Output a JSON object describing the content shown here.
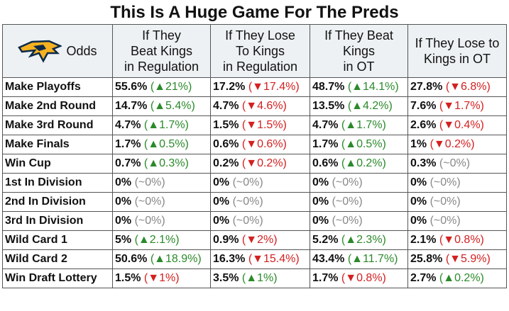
{
  "title": "This Is A Huge Game For The Preds",
  "table": {
    "corner": "Odds",
    "columns": [
      "If They\nBeat Kings\nin Regulation",
      "If They Lose\nTo Kings\nin Regulation",
      "If They Beat\nKings\nin OT",
      "If They Lose to\nKings in OT"
    ],
    "rows": [
      {
        "label": "Make Playoffs",
        "cells": [
          {
            "value": "55.6%",
            "change": "(▲21%)",
            "trend": "up"
          },
          {
            "value": "17.2%",
            "change": "(▼17.4%)",
            "trend": "down"
          },
          {
            "value": "48.7%",
            "change": "(▲14.1%)",
            "trend": "up"
          },
          {
            "value": "27.8%",
            "change": "(▼6.8%)",
            "trend": "down"
          }
        ]
      },
      {
        "label": "Make 2nd Round",
        "cells": [
          {
            "value": "14.7%",
            "change": "(▲5.4%)",
            "trend": "up"
          },
          {
            "value": "4.7%",
            "change": "(▼4.6%)",
            "trend": "down"
          },
          {
            "value": "13.5%",
            "change": "(▲4.2%)",
            "trend": "up"
          },
          {
            "value": "7.6%",
            "change": "(▼1.7%)",
            "trend": "down"
          }
        ]
      },
      {
        "label": "Make 3rd Round",
        "cells": [
          {
            "value": "4.7%",
            "change": "(▲1.7%)",
            "trend": "up"
          },
          {
            "value": "1.5%",
            "change": "(▼1.5%)",
            "trend": "down"
          },
          {
            "value": "4.7%",
            "change": "(▲1.7%)",
            "trend": "up"
          },
          {
            "value": "2.6%",
            "change": "(▼0.4%)",
            "trend": "down"
          }
        ]
      },
      {
        "label": "Make Finals",
        "cells": [
          {
            "value": "1.7%",
            "change": "(▲0.5%)",
            "trend": "up"
          },
          {
            "value": "0.6%",
            "change": "(▼0.6%)",
            "trend": "down"
          },
          {
            "value": "1.7%",
            "change": "(▲0.5%)",
            "trend": "up"
          },
          {
            "value": "1%",
            "change": "(▼0.2%)",
            "trend": "down"
          }
        ]
      },
      {
        "label": "Win Cup",
        "cells": [
          {
            "value": "0.7%",
            "change": "(▲0.3%)",
            "trend": "up"
          },
          {
            "value": "0.2%",
            "change": "(▼0.2%)",
            "trend": "down"
          },
          {
            "value": "0.6%",
            "change": "(▲0.2%)",
            "trend": "up"
          },
          {
            "value": "0.3%",
            "change": "(~0%)",
            "trend": "flat"
          }
        ]
      },
      {
        "label": "1st In Division",
        "cells": [
          {
            "value": "0%",
            "change": "(~0%)",
            "trend": "flat"
          },
          {
            "value": "0%",
            "change": "(~0%)",
            "trend": "flat"
          },
          {
            "value": "0%",
            "change": "(~0%)",
            "trend": "flat"
          },
          {
            "value": "0%",
            "change": "(~0%)",
            "trend": "flat"
          }
        ]
      },
      {
        "label": "2nd In Division",
        "cells": [
          {
            "value": "0%",
            "change": "(~0%)",
            "trend": "flat"
          },
          {
            "value": "0%",
            "change": "(~0%)",
            "trend": "flat"
          },
          {
            "value": "0%",
            "change": "(~0%)",
            "trend": "flat"
          },
          {
            "value": "0%",
            "change": "(~0%)",
            "trend": "flat"
          }
        ]
      },
      {
        "label": "3rd In Division",
        "cells": [
          {
            "value": "0%",
            "change": "(~0%)",
            "trend": "flat"
          },
          {
            "value": "0%",
            "change": "(~0%)",
            "trend": "flat"
          },
          {
            "value": "0%",
            "change": "(~0%)",
            "trend": "flat"
          },
          {
            "value": "0%",
            "change": "(~0%)",
            "trend": "flat"
          }
        ]
      },
      {
        "label": "Wild Card 1",
        "cells": [
          {
            "value": "5%",
            "change": "(▲2.1%)",
            "trend": "up"
          },
          {
            "value": "0.9%",
            "change": "(▼2%)",
            "trend": "down"
          },
          {
            "value": "5.2%",
            "change": "(▲2.3%)",
            "trend": "up"
          },
          {
            "value": "2.1%",
            "change": "(▼0.8%)",
            "trend": "down"
          }
        ]
      },
      {
        "label": "Wild Card 2",
        "cells": [
          {
            "value": "50.6%",
            "change": "(▲18.9%)",
            "trend": "up"
          },
          {
            "value": "16.3%",
            "change": "(▼15.4%)",
            "trend": "down"
          },
          {
            "value": "43.4%",
            "change": "(▲11.7%)",
            "trend": "up"
          },
          {
            "value": "25.8%",
            "change": "(▼5.9%)",
            "trend": "down"
          }
        ]
      },
      {
        "label": "Win Draft Lottery",
        "cells": [
          {
            "value": "1.5%",
            "change": "(▼1%)",
            "trend": "down"
          },
          {
            "value": "3.5%",
            "change": "(▲1%)",
            "trend": "up"
          },
          {
            "value": "1.7%",
            "change": "(▼0.8%)",
            "trend": "down"
          },
          {
            "value": "2.7%",
            "change": "(▲0.2%)",
            "trend": "up"
          }
        ]
      }
    ]
  }
}
